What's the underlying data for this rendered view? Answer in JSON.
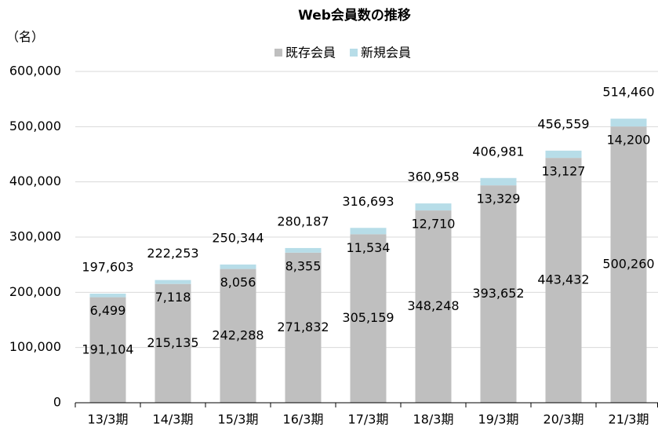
{
  "chart_data": {
    "type": "stacked_bar",
    "title": "Web会員数の推移",
    "y_axis_label": "（名）",
    "categories": [
      "13/3期",
      "14/3期",
      "15/3期",
      "16/3期",
      "17/3期",
      "18/3期",
      "19/3期",
      "20/3期",
      "21/3期"
    ],
    "series": [
      {
        "name": "既存会員",
        "color": "#bfbfbf",
        "values": [
          191104,
          215135,
          242288,
          271832,
          305159,
          348248,
          393652,
          443432,
          500260
        ],
        "value_labels": [
          "191,104",
          "215,135",
          "242,288",
          "271,832",
          "305,159",
          "348,248",
          "393,652",
          "443,432",
          "500,260"
        ]
      },
      {
        "name": "新規会員",
        "color": "#b7dde8",
        "values": [
          6499,
          7118,
          8056,
          8355,
          11534,
          12710,
          13329,
          13127,
          14200
        ],
        "value_labels": [
          "6,499",
          "7,118",
          "8,056",
          "8,355",
          "11,534",
          "12,710",
          "13,329",
          "13,127",
          "14,200"
        ]
      }
    ],
    "totals": {
      "values": [
        197603,
        222253,
        250344,
        280187,
        316693,
        360958,
        406981,
        456559,
        514460
      ],
      "value_labels": [
        "197,603",
        "222,253",
        "250,344",
        "280,187",
        "316,693",
        "360,958",
        "406,981",
        "456,559",
        "514,460"
      ]
    },
    "ylim": [
      0,
      600000
    ],
    "yticks": [
      0,
      {
        "value": 100000,
        "label": "100,000"
      },
      {
        "value": 200000,
        "label": "200,000"
      },
      {
        "value": 300000,
        "label": "300,000"
      },
      {
        "value": 400000,
        "label": "400,000"
      },
      {
        "value": 500000,
        "label": "500,000"
      },
      {
        "value": 600000,
        "label": "600,000"
      }
    ],
    "grid": true,
    "legend": "top"
  }
}
